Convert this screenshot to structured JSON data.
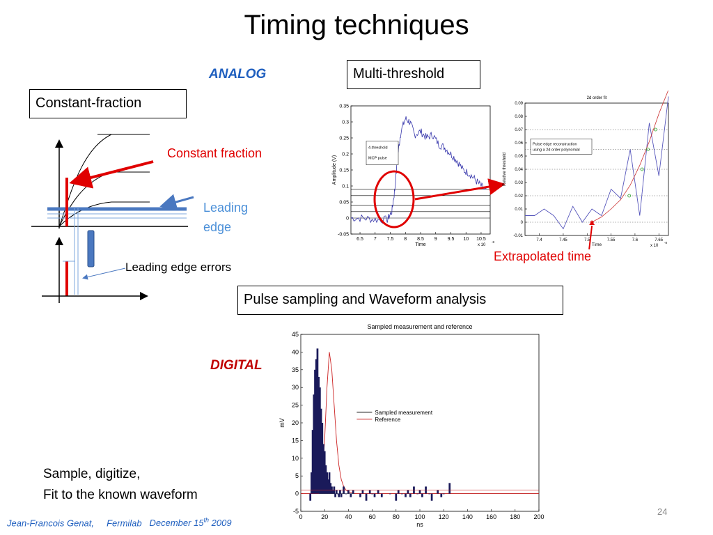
{
  "slide": {
    "title": "Timing techniques",
    "analog_label": "ANALOG",
    "digital_label": "DIGITAL",
    "box_constant_fraction": "Constant-fraction",
    "box_multi_threshold": "Multi-threshold",
    "box_pulse_sampling": "Pulse sampling and Waveform analysis",
    "label_constant_fraction": "Constant fraction",
    "label_leading_edge_line1": "Leading",
    "label_leading_edge_line2": "edge",
    "label_leading_edge_errors": "Leading edge errors",
    "label_extrapolated_time": "Extrapolated  time",
    "sample_text_line1": "Sample, digitize,",
    "sample_text_line2": "Fit to the known waveform",
    "footer_author": "Jean-Francois Genat,",
    "footer_org": "Fermilab",
    "footer_date_pre": "December 15",
    "footer_date_sup": "th",
    "footer_date_post": " 2009",
    "page_number": "24",
    "colors": {
      "red": "#e00000",
      "blue": "#1f5fbf",
      "lightblue": "#4a8fd8"
    }
  },
  "chart_data": [
    {
      "type": "line",
      "xlabel": "Time",
      "ylabel": "Amplitude (V)",
      "x_multiplier": "x 10",
      "x_multiplier_exp": "-8",
      "xlim": [
        6.2,
        10.8
      ],
      "ylim": [
        -0.05,
        0.35
      ],
      "x_ticks": [
        "6.5",
        "7",
        "7.5",
        "8",
        "8.5",
        "9",
        "9.5",
        "10",
        "10.5"
      ],
      "y_ticks": [
        "-0.05",
        "0",
        "0.05",
        "0.1",
        "0.15",
        "0.2",
        "0.25",
        "0.3",
        "0.35"
      ],
      "legend": [
        "4-threshold",
        "MCP pulse"
      ],
      "thresholds": [
        0.02,
        0.04,
        0.07,
        0.09
      ],
      "series": [
        {
          "x": [
            6.2,
            6.6,
            7.0,
            7.4,
            7.55,
            7.65,
            7.75,
            7.85,
            8.0,
            8.15,
            8.3,
            8.5,
            8.7,
            8.9,
            9.1,
            9.3,
            9.5,
            9.7,
            9.9,
            10.1,
            10.3,
            10.5,
            10.7
          ],
          "y": [
            0.0,
            0.0,
            -0.005,
            -0.005,
            0.02,
            0.09,
            0.2,
            0.27,
            0.31,
            0.3,
            0.26,
            0.27,
            0.25,
            0.26,
            0.23,
            0.22,
            0.2,
            0.18,
            0.15,
            0.14,
            0.12,
            0.1,
            0.08
          ]
        }
      ]
    },
    {
      "type": "line",
      "title": "2d order fit",
      "xlabel": "Time",
      "ylabel": "Relative threshold",
      "x_multiplier": "x 10",
      "x_multiplier_exp": "-8",
      "xlim": [
        7.37,
        7.67
      ],
      "ylim": [
        -0.01,
        0.09
      ],
      "x_ticks": [
        "7.4",
        "7.45",
        "7.5",
        "7.55",
        "7.6",
        "7.65"
      ],
      "y_ticks": [
        "-0.01",
        "0",
        "0.01",
        "0.02",
        "0.03",
        "0.04",
        "0.05",
        "0.06",
        "0.07",
        "0.08",
        "0.09"
      ],
      "legend_line1": "Pulse edge reconstruction",
      "legend_line2": "using a 2d order polynomial",
      "series": [
        {
          "name": "data",
          "x": [
            7.37,
            7.39,
            7.41,
            7.43,
            7.45,
            7.47,
            7.49,
            7.51,
            7.53,
            7.55,
            7.57,
            7.59,
            7.61,
            7.63,
            7.65,
            7.67
          ],
          "y": [
            0.005,
            0.005,
            0.01,
            0.005,
            -0.005,
            0.012,
            0.0,
            0.01,
            0.005,
            0.025,
            0.018,
            0.055,
            0.005,
            0.075,
            0.035,
            0.095
          ]
        },
        {
          "name": "fit",
          "x": [
            7.51,
            7.53,
            7.55,
            7.57,
            7.59,
            7.61,
            7.63,
            7.65,
            7.67
          ],
          "y": [
            0.0,
            0.004,
            0.01,
            0.017,
            0.028,
            0.043,
            0.061,
            0.082,
            0.1
          ]
        }
      ],
      "fit_markers": [
        {
          "x": 7.51,
          "y": 0.0
        },
        {
          "x": 7.588,
          "y": 0.02
        },
        {
          "x": 7.615,
          "y": 0.04
        },
        {
          "x": 7.627,
          "y": 0.055
        },
        {
          "x": 7.643,
          "y": 0.07
        }
      ]
    },
    {
      "type": "bar",
      "title": "Sampled measurement and reference",
      "xlabel": "ns",
      "ylabel": "mV",
      "xlim": [
        0,
        200
      ],
      "ylim": [
        -5,
        45
      ],
      "x_ticks": [
        "0",
        "20",
        "40",
        "60",
        "80",
        "100",
        "120",
        "140",
        "160",
        "180",
        "200"
      ],
      "y_ticks": [
        "-5",
        "0",
        "5",
        "10",
        "15",
        "20",
        "25",
        "30",
        "35",
        "40",
        "45"
      ],
      "legend": [
        "Sampled measurement",
        "Reference"
      ],
      "sampled": {
        "x": [
          8,
          9,
          10,
          11,
          12,
          13,
          14,
          15,
          16,
          17,
          18,
          19,
          20,
          21,
          22,
          23,
          24,
          25,
          26,
          27,
          28,
          29,
          30,
          31,
          32,
          33,
          34,
          36,
          38,
          40,
          42,
          44,
          50,
          52,
          55,
          58,
          60,
          62,
          65,
          68,
          75,
          80,
          82,
          85,
          88,
          90,
          92,
          95,
          98,
          100,
          102,
          105,
          108,
          110,
          115,
          118,
          120,
          125
        ],
        "y": [
          -2,
          6,
          18,
          28,
          35,
          38,
          41,
          33,
          30,
          24,
          20,
          14,
          12,
          8,
          6,
          4,
          6,
          3,
          2,
          1,
          2,
          -1,
          1,
          0,
          -1,
          1,
          -1,
          2,
          0,
          1,
          -1,
          1,
          -1,
          1,
          -2,
          1,
          0,
          -1,
          1,
          -1,
          0,
          -2,
          1,
          0,
          -1,
          1,
          -1,
          2,
          0,
          1,
          -1,
          2,
          0,
          -2,
          1,
          -1,
          0,
          3
        ]
      },
      "reference": {
        "x": [
          0,
          15,
          18,
          20,
          22,
          24,
          26,
          28,
          30,
          32,
          34,
          36,
          38,
          40,
          45,
          200
        ],
        "y": [
          0,
          0,
          5,
          15,
          30,
          40,
          35,
          25,
          15,
          8,
          4,
          2,
          1,
          0.5,
          0,
          0
        ]
      }
    }
  ]
}
